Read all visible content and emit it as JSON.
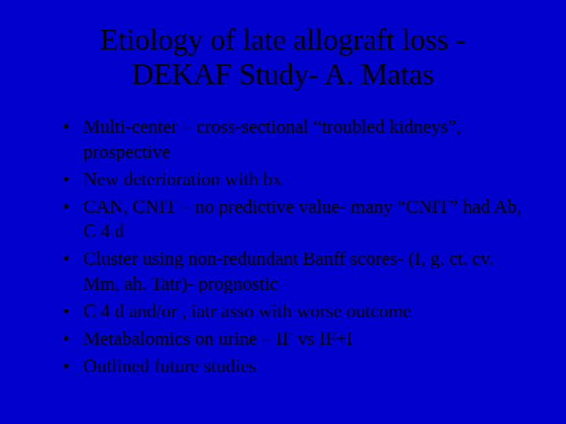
{
  "slide": {
    "background_color": "#0000cc",
    "text_color": "#000000",
    "font_family": "Times New Roman",
    "title": "Etiology of late allograft loss - DEKAF Study- A. Matas",
    "title_fontsize": 38,
    "bullet_fontsize": 24,
    "bullets": [
      "Multi-center – cross-sectional “troubled kidneys”, prospective",
      "New deterioration with bx",
      "CAN, CNIT – no predictive value- many “CNIT” had Ab, C 4 d",
      "Cluster using non-redundant  Banff scores- (I, g. ct. cv. Mm, ah. Tatr)- prognostic",
      "C 4 d and/or , iatr asso with worse outcome",
      "Metabalomics on urine – IF vs IF+I",
      "Outlined future studies"
    ]
  }
}
